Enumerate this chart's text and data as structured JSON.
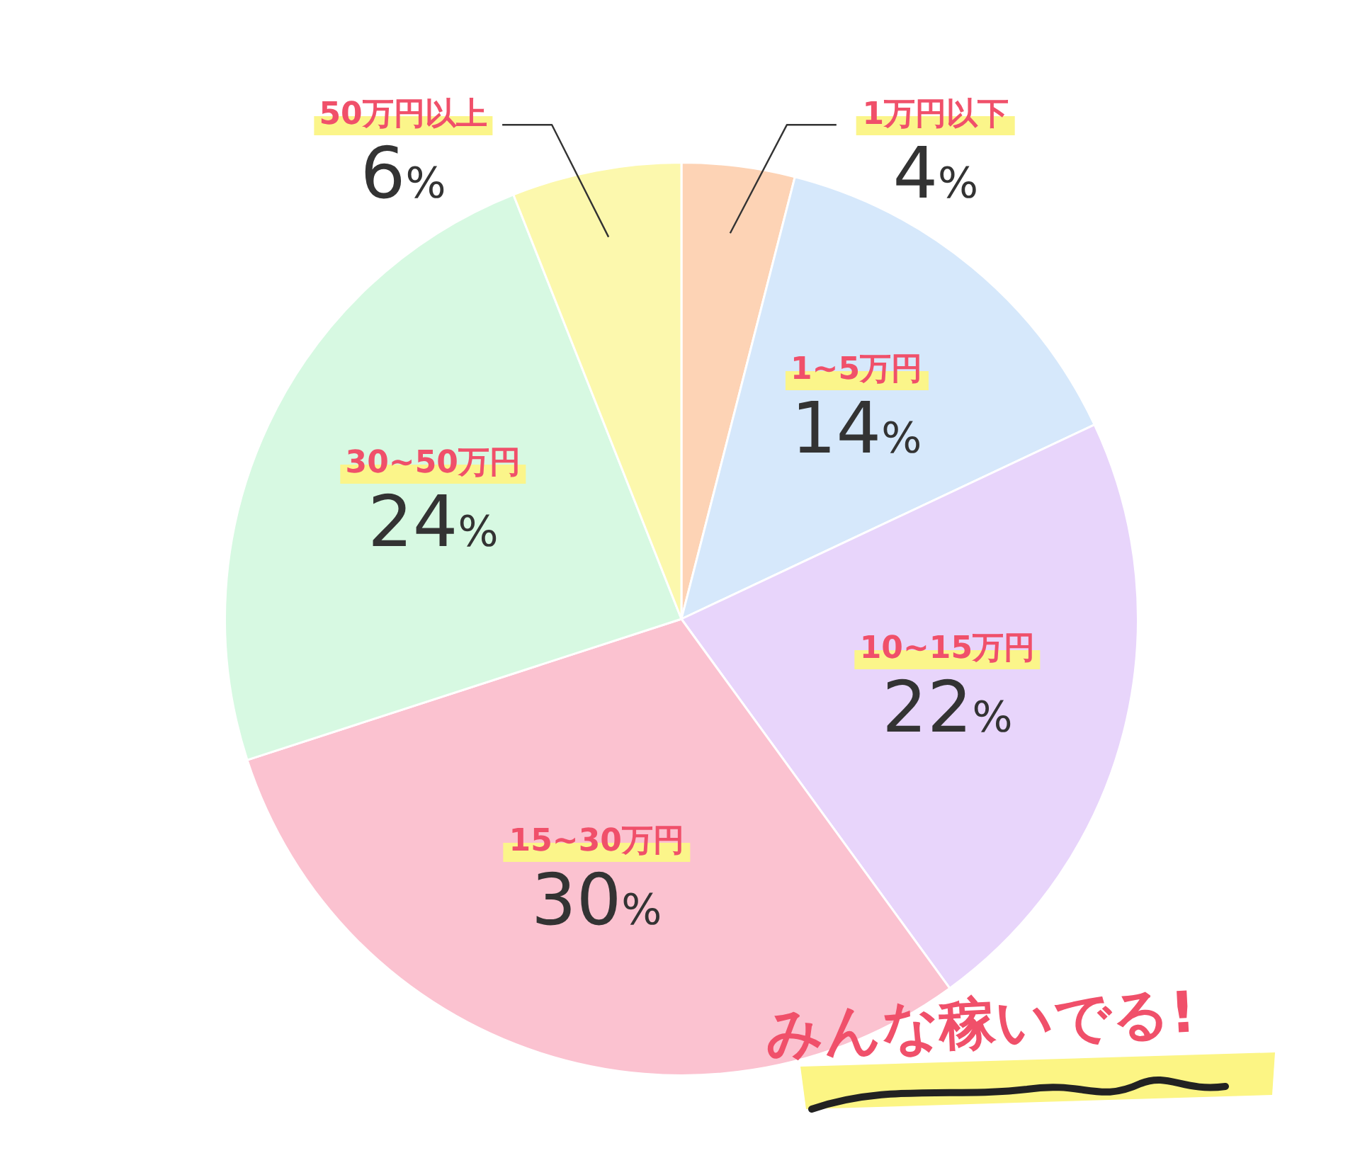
{
  "chart_data": {
    "type": "pie",
    "categories": [
      "1万円以下",
      "1~5万円",
      "10~15万円",
      "15~30万円",
      "30~50万円",
      "50万円以上"
    ],
    "values": [
      4,
      14,
      22,
      30,
      24,
      6
    ],
    "value_labels": [
      "4%",
      "14%",
      "22%",
      "30%",
      "24%",
      "6%"
    ],
    "colors": [
      "#fdd3b5",
      "#d6e8fb",
      "#e8d5fb",
      "#fbc2d0",
      "#d7f9e2",
      "#fcf8ad"
    ],
    "legend": false,
    "annotations": [
      "みんな稼いでる!"
    ]
  }
}
